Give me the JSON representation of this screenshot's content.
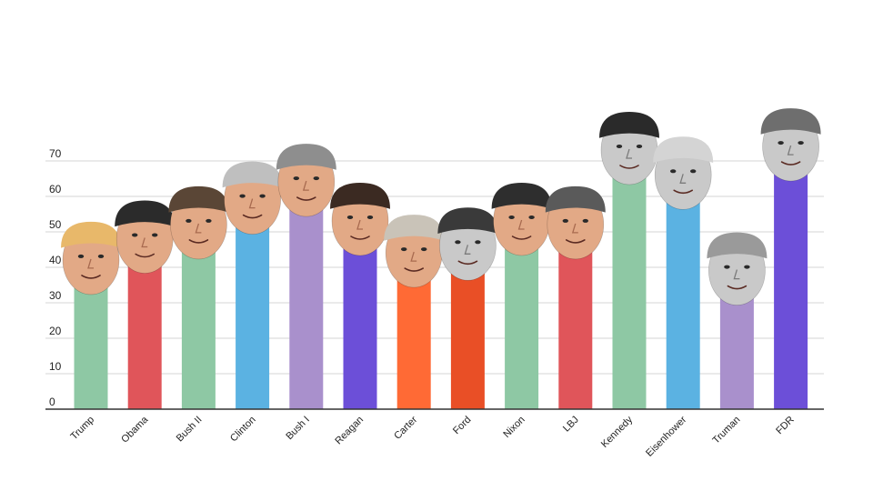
{
  "chart_data": {
    "type": "bar",
    "categories": [
      "Trump",
      "Obama",
      "Bush II",
      "Clinton",
      "Bush I",
      "Reagan",
      "Carter",
      "Ford",
      "Nixon",
      "LBJ",
      "Kennedy",
      "Eisenhower",
      "Truman",
      "FDR"
    ],
    "values": [
      39,
      45,
      49,
      56,
      61,
      50,
      41,
      43,
      50,
      49,
      70,
      63,
      36,
      71
    ],
    "colors": [
      "#8ec8a4",
      "#e0555a",
      "#8ec8a4",
      "#5bb2e2",
      "#a990cc",
      "#6c4fd8",
      "#ff6a35",
      "#e94f26",
      "#8ec8a4",
      "#e0555a",
      "#8ec8a4",
      "#5bb2e2",
      "#a990cc",
      "#6c4fd8"
    ],
    "face_styles": [
      "color",
      "color",
      "color",
      "color",
      "color",
      "color",
      "color",
      "grayscale",
      "color",
      "color",
      "grayscale",
      "grayscale",
      "grayscale",
      "grayscale"
    ],
    "hair_colors": [
      "#e8b86a",
      "#2b2b2b",
      "#5a4636",
      "#bfbfbf",
      "#8e8e8e",
      "#3b2a22",
      "#c9c3b8",
      "#3a3a3a",
      "#2e2e2e",
      "#5a5a5a",
      "#2a2a2a",
      "#d4d4d4",
      "#9a9a9a",
      "#6e6e6e"
    ],
    "yticks": [
      0,
      10,
      20,
      30,
      40,
      50,
      60,
      70
    ],
    "ylim": [
      0,
      72
    ],
    "grid": true,
    "title": "",
    "xlabel": "",
    "ylabel": ""
  }
}
